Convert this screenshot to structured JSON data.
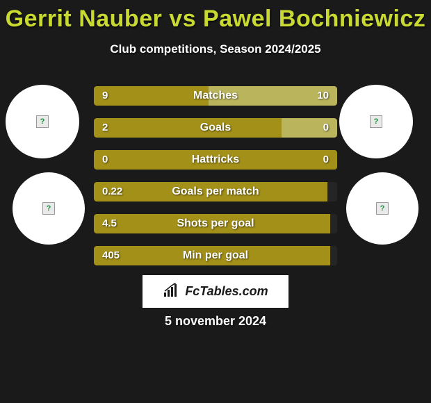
{
  "title": "Gerrit Nauber vs Pawel Bochniewicz",
  "subtitle": "Club competitions, Season 2024/2025",
  "date": "5 november 2024",
  "logo_text": "FcTables.com",
  "colors": {
    "background": "#1a1a1a",
    "accent": "#c8d932",
    "bar_primary": "#a39019",
    "bar_secondary": "#bab45d",
    "text": "#ffffff"
  },
  "stats": [
    {
      "label": "Matches",
      "left_value": "9",
      "right_value": "10",
      "left_pct": 47,
      "right_pct": 53,
      "left_color": "#a39019",
      "right_color": "#bab45d"
    },
    {
      "label": "Goals",
      "left_value": "2",
      "right_value": "0",
      "left_pct": 77,
      "right_pct": 23,
      "left_color": "#a39019",
      "right_color": "#bab45d"
    },
    {
      "label": "Hattricks",
      "left_value": "0",
      "right_value": "0",
      "left_pct": 100,
      "right_pct": 0,
      "left_color": "#a39019",
      "right_color": "#bab45d"
    },
    {
      "label": "Goals per match",
      "left_value": "0.22",
      "right_value": "",
      "left_pct": 96,
      "right_pct": 0,
      "left_color": "#a39019",
      "right_color": "#bab45d"
    },
    {
      "label": "Shots per goal",
      "left_value": "4.5",
      "right_value": "",
      "left_pct": 97,
      "right_pct": 0,
      "left_color": "#a39019",
      "right_color": "#bab45d"
    },
    {
      "label": "Min per goal",
      "left_value": "405",
      "right_value": "",
      "left_pct": 97,
      "right_pct": 0,
      "left_color": "#a39019",
      "right_color": "#bab45d"
    }
  ]
}
